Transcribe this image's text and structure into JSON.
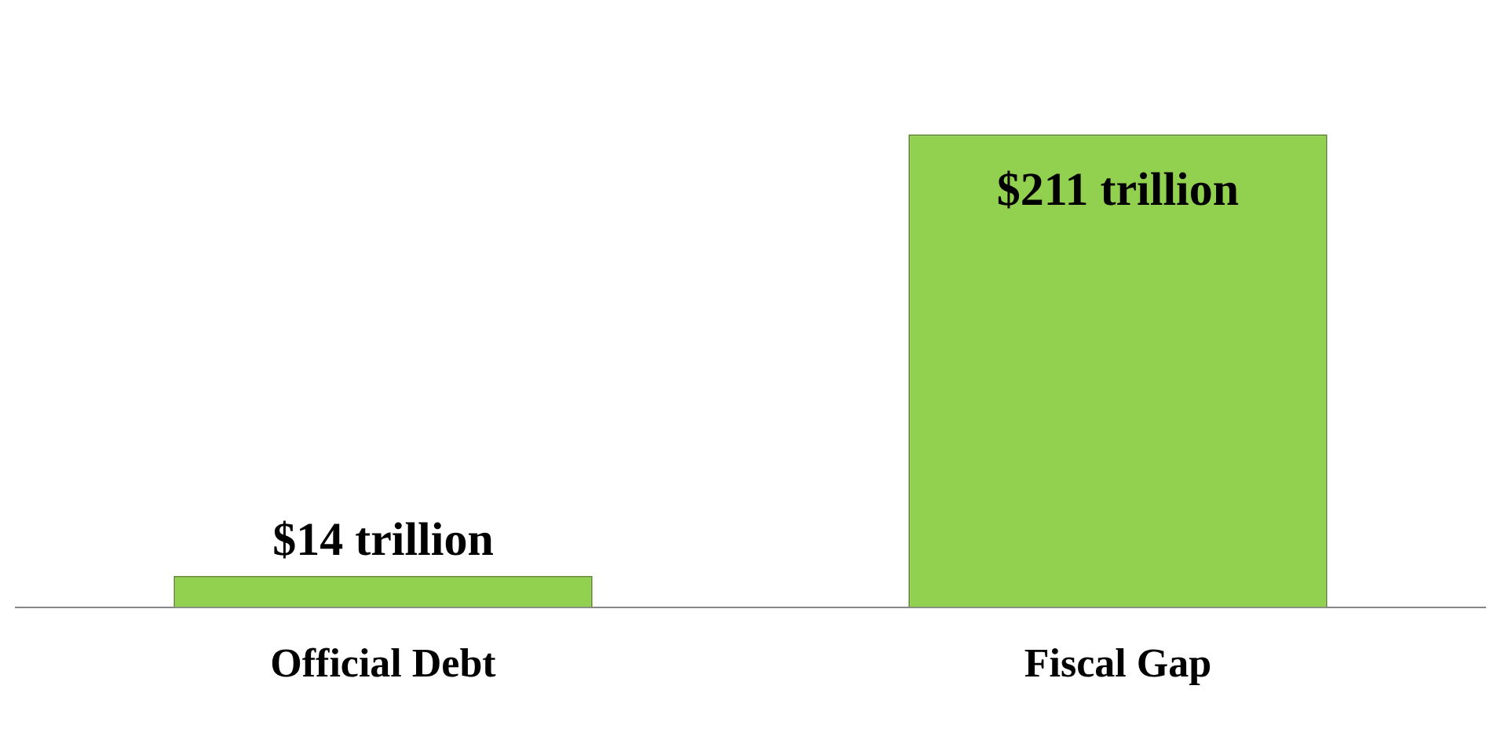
{
  "chart_data": {
    "type": "bar",
    "categories": [
      "Official Debt",
      "Fiscal Gap"
    ],
    "values": [
      14,
      211
    ],
    "color": "#92d050",
    "value_labels": [
      "$14 trillion",
      "$211 trillion"
    ],
    "grid": false,
    "legend": false
  }
}
